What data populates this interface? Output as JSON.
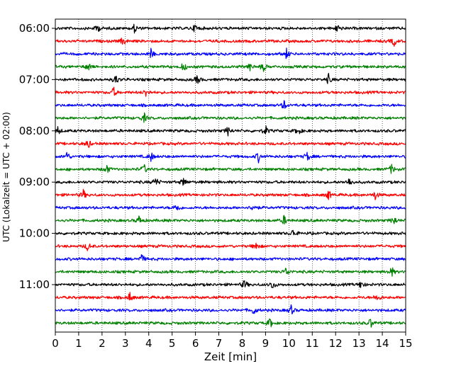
{
  "chart_data": {
    "type": "line",
    "title": "",
    "xlabel": "Zeit  [min]",
    "ylabel": "UTC (Lokalzeit = UTC + 02:00)",
    "xlim": [
      0,
      15
    ],
    "x_ticks": [
      "0",
      "1",
      "2",
      "3",
      "4",
      "5",
      "6",
      "7",
      "8",
      "9",
      "10",
      "11",
      "12",
      "13",
      "14",
      "15"
    ],
    "y_ticks": [
      {
        "label": "06:00",
        "trace_index": 0
      },
      {
        "label": "07:00",
        "trace_index": 4
      },
      {
        "label": "08:00",
        "trace_index": 8
      },
      {
        "label": "09:00",
        "trace_index": 12
      },
      {
        "label": "10:00",
        "trace_index": 16
      },
      {
        "label": "11:00",
        "trace_index": 20
      }
    ],
    "grid": {
      "vertical": true,
      "style": "dotted"
    },
    "trace_interval_minutes": 15,
    "trace_colors": [
      "#000000",
      "#ff0000",
      "#0000ff",
      "#008000"
    ],
    "traces": [
      {
        "start": "06:00",
        "color": "#000000",
        "events": [
          1.8,
          3.4,
          6.0,
          12.1
        ]
      },
      {
        "start": "06:15",
        "color": "#ff0000",
        "events": [
          2.9,
          14.5
        ]
      },
      {
        "start": "06:30",
        "color": "#0000ff",
        "events": [
          4.1,
          9.9
        ]
      },
      {
        "start": "06:45",
        "color": "#008000",
        "events": [
          1.4,
          5.5,
          8.3,
          8.9
        ]
      },
      {
        "start": "07:00",
        "color": "#000000",
        "events": [
          2.6,
          6.1,
          11.7
        ]
      },
      {
        "start": "07:15",
        "color": "#ff0000",
        "events": [
          2.5,
          3.9
        ]
      },
      {
        "start": "07:30",
        "color": "#0000ff",
        "events": [
          9.8
        ]
      },
      {
        "start": "07:45",
        "color": "#008000",
        "events": [
          3.8
        ]
      },
      {
        "start": "08:00",
        "color": "#000000",
        "events": [
          0.1,
          7.4,
          9.0,
          10.4
        ]
      },
      {
        "start": "08:15",
        "color": "#ff0000",
        "events": [
          1.4
        ]
      },
      {
        "start": "08:30",
        "color": "#0000ff",
        "events": [
          0.5,
          4.1,
          8.7,
          10.8
        ]
      },
      {
        "start": "08:45",
        "color": "#008000",
        "events": [
          2.2,
          3.8,
          14.4
        ]
      },
      {
        "start": "09:00",
        "color": "#000000",
        "events": [
          4.3,
          5.5,
          12.6
        ]
      },
      {
        "start": "09:15",
        "color": "#ff0000",
        "events": [
          1.2,
          11.7,
          13.7
        ]
      },
      {
        "start": "09:30",
        "color": "#0000ff",
        "events": [
          5.2,
          8.5
        ]
      },
      {
        "start": "09:45",
        "color": "#008000",
        "events": [
          3.6,
          9.8,
          14.5
        ]
      },
      {
        "start": "10:00",
        "color": "#000000",
        "events": [
          10.2
        ]
      },
      {
        "start": "10:15",
        "color": "#ff0000",
        "events": [
          1.4,
          8.6
        ]
      },
      {
        "start": "10:30",
        "color": "#0000ff",
        "events": [
          3.7
        ]
      },
      {
        "start": "10:45",
        "color": "#008000",
        "events": [
          9.9,
          14.4
        ]
      },
      {
        "start": "11:00",
        "color": "#000000",
        "events": [
          8.1,
          9.3,
          13.1
        ]
      },
      {
        "start": "11:15",
        "color": "#ff0000",
        "events": [
          3.2,
          13.8
        ]
      },
      {
        "start": "11:30",
        "color": "#0000ff",
        "events": [
          8.5,
          10.1
        ]
      },
      {
        "start": "11:45",
        "color": "#008000",
        "events": [
          9.2,
          13.5
        ]
      }
    ]
  }
}
